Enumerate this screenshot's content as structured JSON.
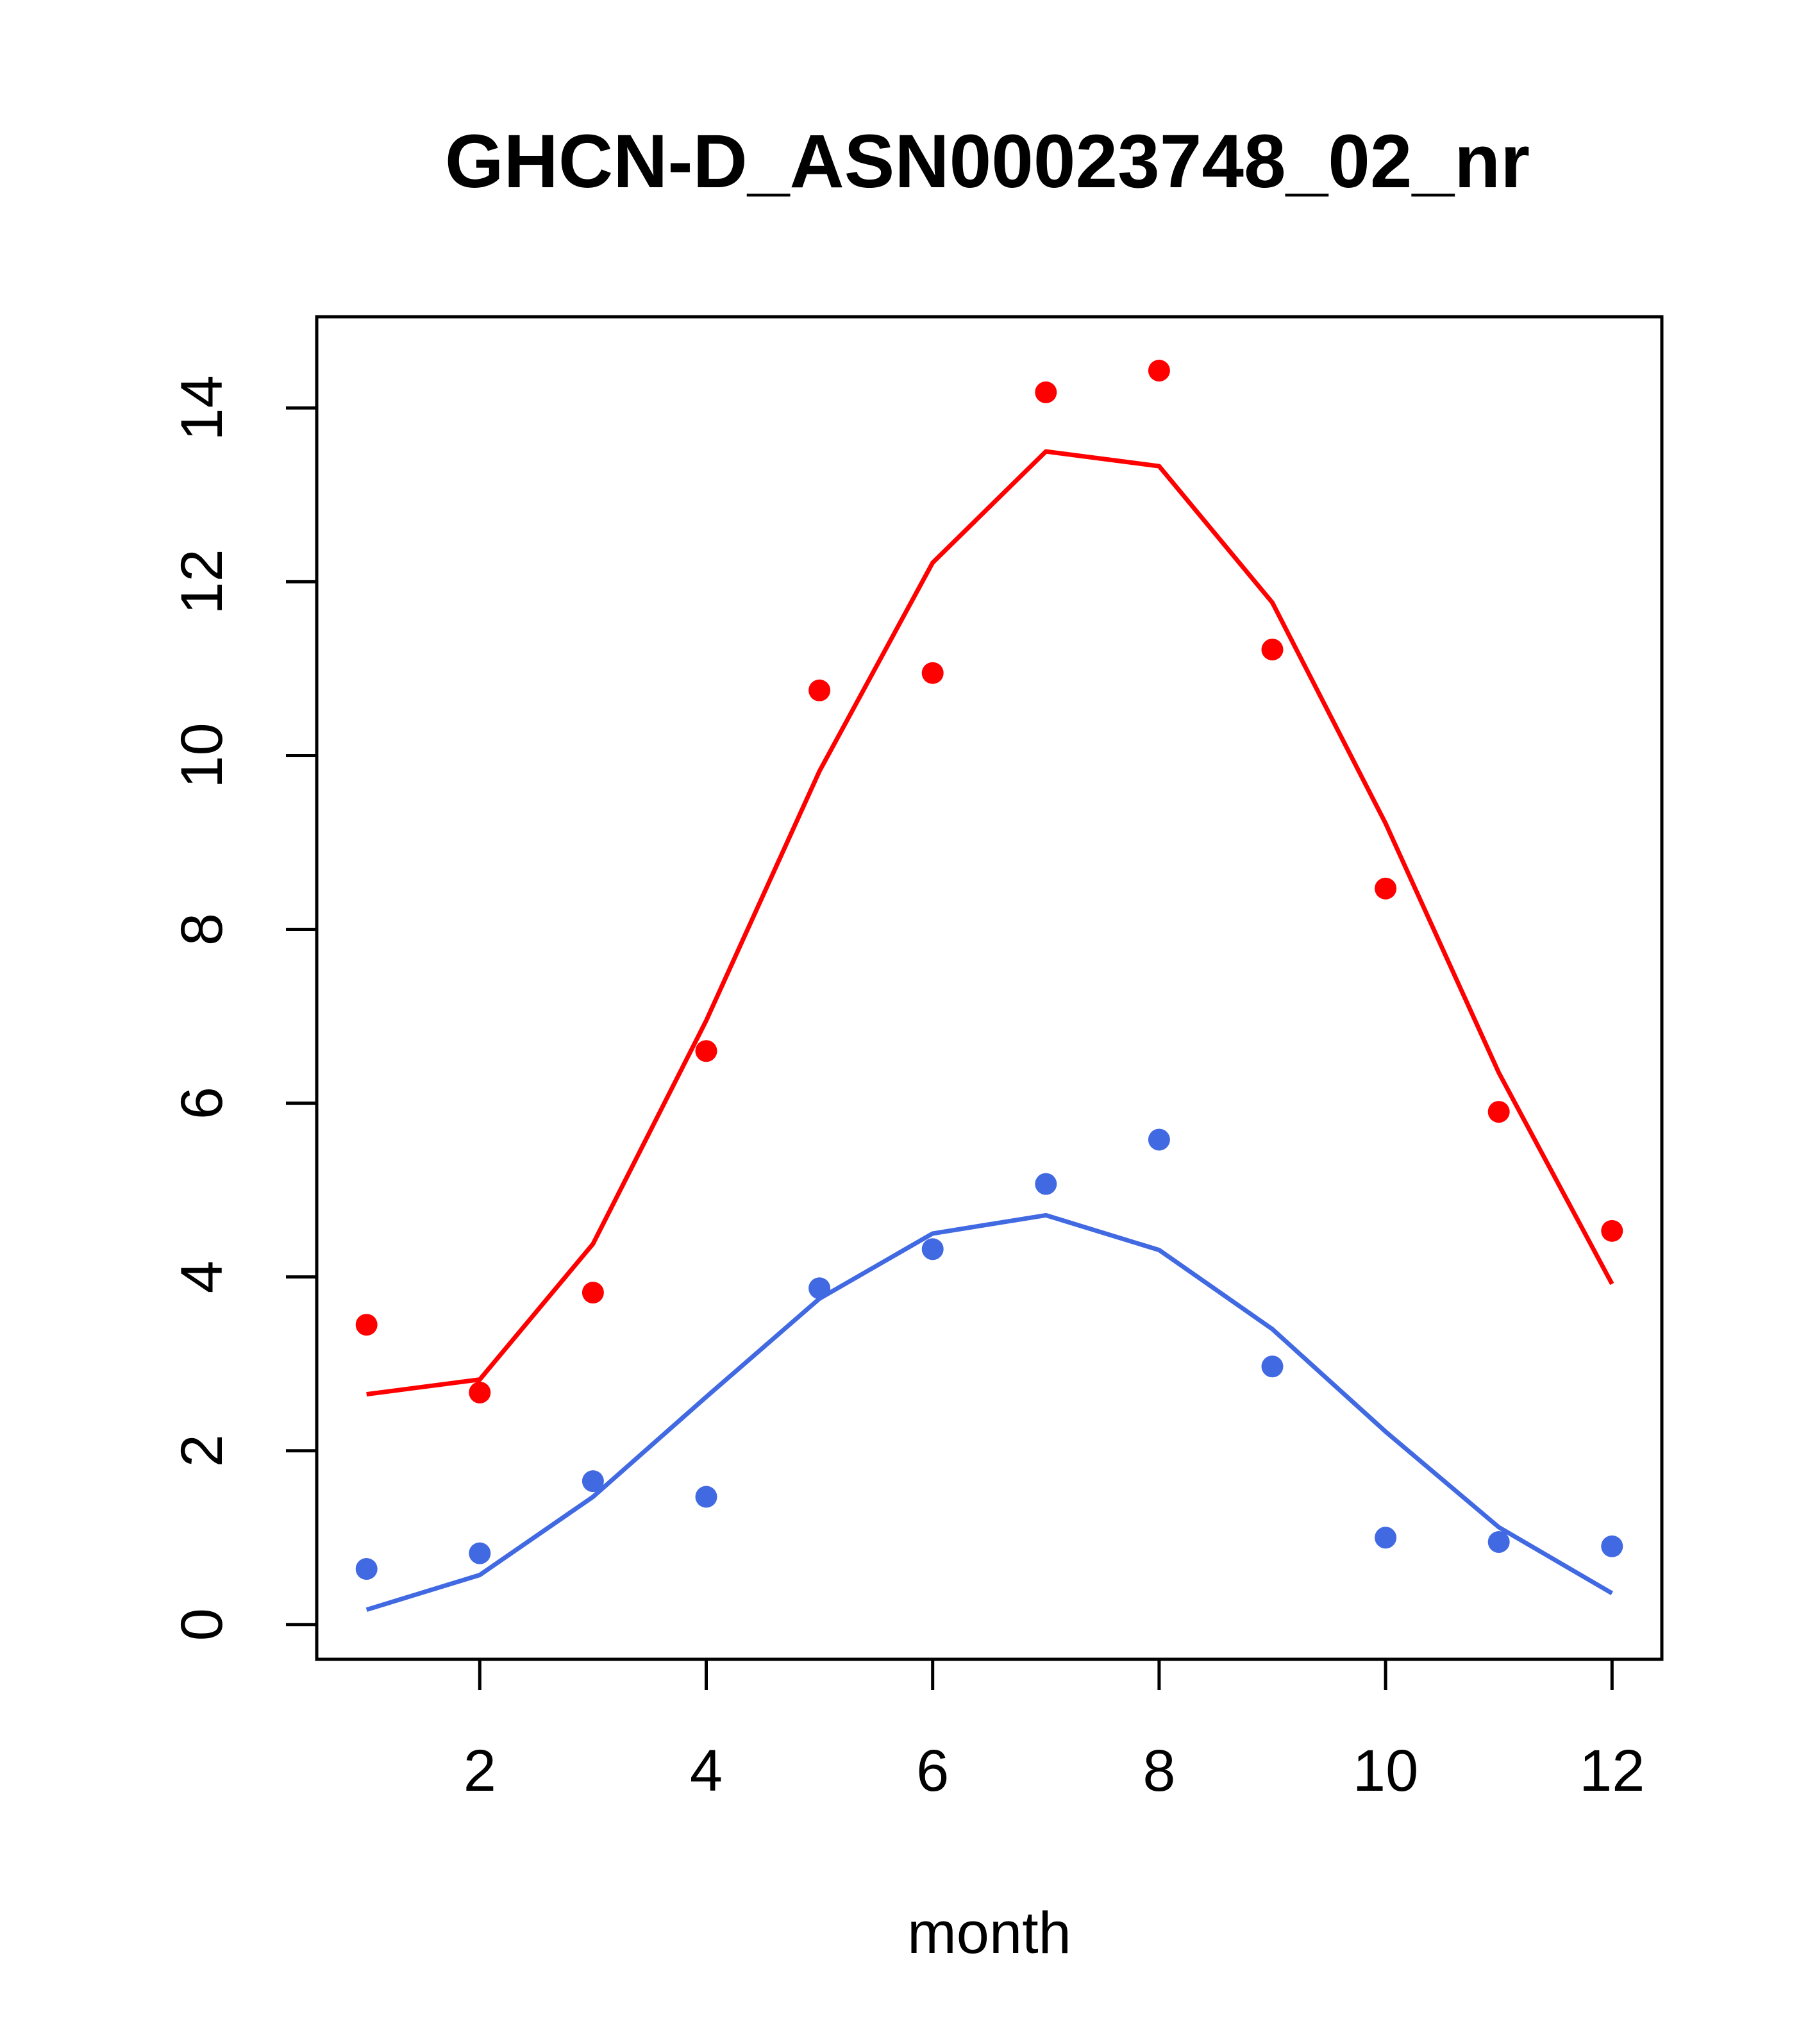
{
  "chart_data": {
    "type": "scatter",
    "title": "GHCN-D_ASN00023748_02_nr",
    "xlabel": "month",
    "ylabel": "",
    "xlim": [
      0.56,
      12.44
    ],
    "ylim": [
      -0.4,
      15.05
    ],
    "x_ticks": [
      2,
      4,
      6,
      8,
      10,
      12
    ],
    "y_ticks": [
      0,
      2,
      4,
      6,
      8,
      10,
      12,
      14
    ],
    "grid": false,
    "legend": "none",
    "series": [
      {
        "color": "#ff0000",
        "points_x": [
          1,
          2,
          3,
          4,
          5,
          6,
          7,
          8,
          9,
          10,
          11,
          12
        ],
        "points_y": [
          3.45,
          2.67,
          3.82,
          6.6,
          10.75,
          10.95,
          14.18,
          14.43,
          11.22,
          8.47,
          5.9,
          4.53
        ],
        "line_x": [
          1,
          2,
          3,
          4,
          5,
          6,
          7,
          8,
          9,
          10,
          11,
          12
        ],
        "line_y": [
          2.65,
          2.82,
          4.38,
          6.95,
          9.82,
          12.22,
          13.5,
          13.33,
          11.76,
          9.22,
          6.35,
          3.92
        ]
      },
      {
        "color": "#4169e1",
        "points_x": [
          1,
          2,
          3,
          4,
          5,
          6,
          7,
          8,
          9,
          10,
          11,
          12
        ],
        "points_y": [
          0.64,
          0.82,
          1.65,
          1.47,
          3.87,
          4.32,
          5.07,
          5.58,
          2.97,
          1.0,
          0.95,
          0.9
        ],
        "line_x": [
          1,
          2,
          3,
          4,
          5,
          6,
          7,
          8,
          9,
          10,
          11,
          12
        ],
        "line_y": [
          0.17,
          0.57,
          1.47,
          2.62,
          3.75,
          4.5,
          4.71,
          4.31,
          3.4,
          2.22,
          1.12,
          0.36
        ]
      }
    ]
  }
}
